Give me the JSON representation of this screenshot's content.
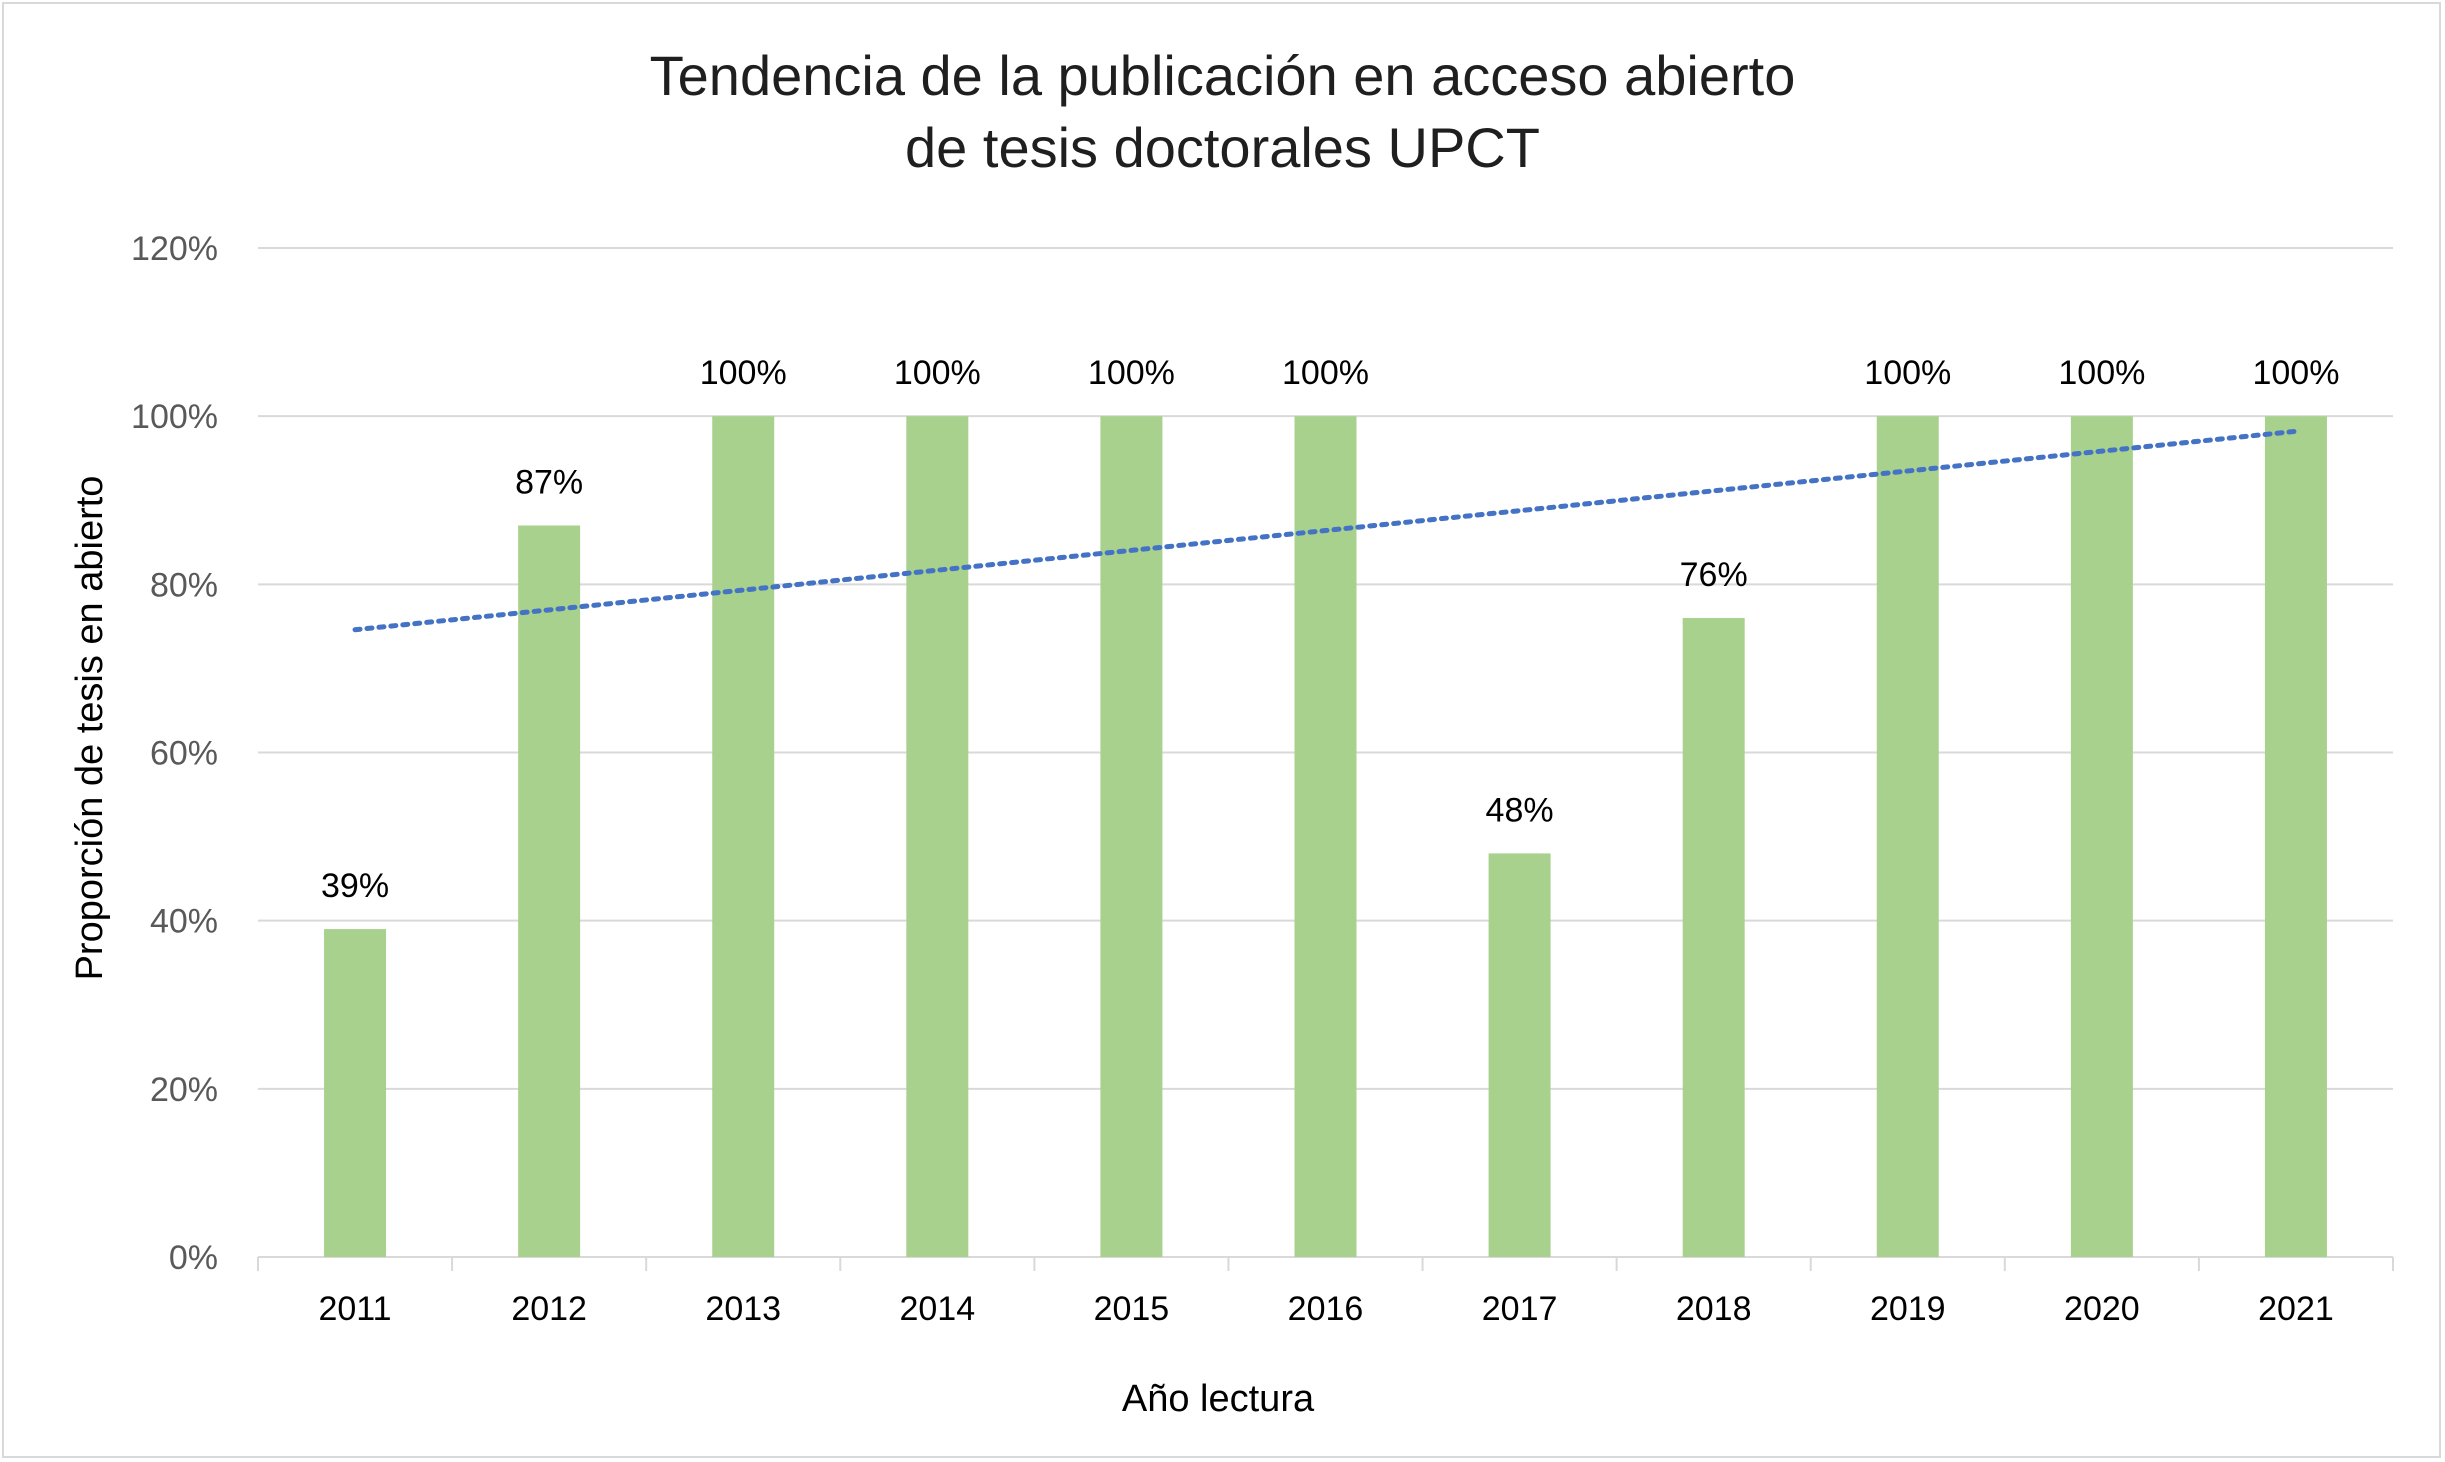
{
  "chart_data": {
    "type": "bar",
    "title_lines": [
      "Tendencia de la publicación en acceso abierto",
      "de tesis doctorales UPCT"
    ],
    "xlabel": "Año lectura",
    "ylabel": "Proporción de tesis en abierto",
    "categories": [
      "2011",
      "2012",
      "2013",
      "2014",
      "2015",
      "2016",
      "2017",
      "2018",
      "2019",
      "2020",
      "2021"
    ],
    "values": [
      39,
      87,
      100,
      100,
      100,
      100,
      48,
      76,
      100,
      100,
      100
    ],
    "data_labels": [
      "39%",
      "87%",
      "100%",
      "100%",
      "100%",
      "100%",
      "48%",
      "76%",
      "100%",
      "100%",
      "100%"
    ],
    "ylim": [
      0,
      120
    ],
    "yticks": [
      0,
      20,
      40,
      60,
      80,
      100,
      120
    ],
    "ytick_labels": [
      "0%",
      "20%",
      "40%",
      "60%",
      "80%",
      "100%",
      "120%"
    ],
    "trendline": {
      "type": "linear",
      "style": "dotted",
      "start": 74.6,
      "end": 98.2
    },
    "grid": true,
    "legend": "none",
    "colors": {
      "bar": "#a9d18e",
      "trend": "#4472c4",
      "grid": "#d9d9d9"
    }
  }
}
